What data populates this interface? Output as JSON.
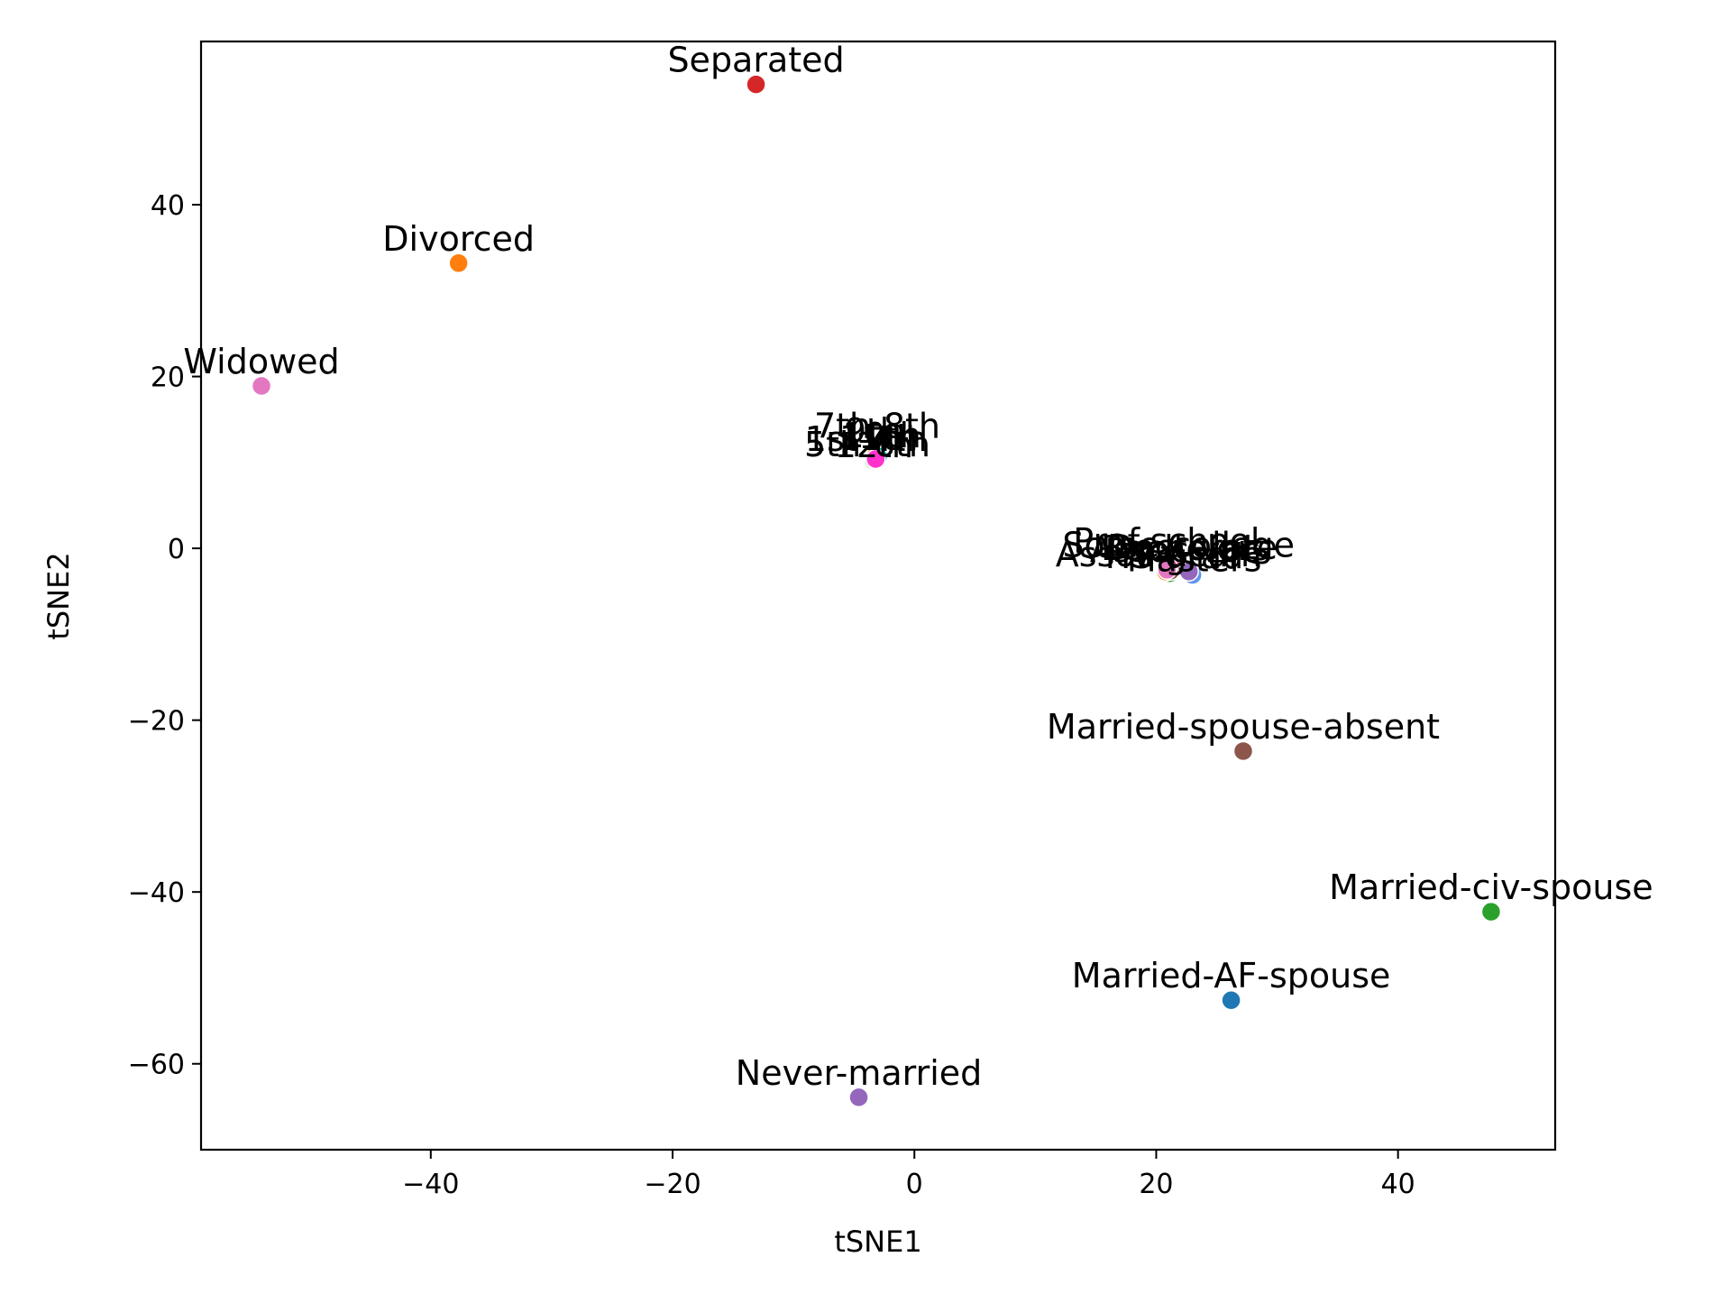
{
  "chart_data": {
    "type": "scatter",
    "title": "",
    "xlabel": "tSNE1",
    "ylabel": "tSNE2",
    "xlim": [
      -59,
      53
    ],
    "ylim": [
      -70,
      59
    ],
    "xticks": [
      {
        "value": -40,
        "label": "−40"
      },
      {
        "value": -20,
        "label": "−20"
      },
      {
        "value": 0,
        "label": "0"
      },
      {
        "value": 20,
        "label": "20"
      },
      {
        "value": 40,
        "label": "40"
      }
    ],
    "yticks": [
      {
        "value": -60,
        "label": "−60"
      },
      {
        "value": -40,
        "label": "−40"
      },
      {
        "value": -20,
        "label": "−20"
      },
      {
        "value": 0,
        "label": "0"
      },
      {
        "value": 20,
        "label": "20"
      },
      {
        "value": 40,
        "label": "40"
      }
    ],
    "grid": false,
    "legend": "none",
    "points": [
      {
        "label": "Separated",
        "x": -13.1,
        "y": 54.0,
        "color": "#d62728"
      },
      {
        "label": "Divorced",
        "x": -37.7,
        "y": 33.2,
        "color": "#ff7f0e"
      },
      {
        "label": "Widowed",
        "x": -54.0,
        "y": 18.9,
        "color": "#e377c2"
      },
      {
        "label": "Married-spouse-absent",
        "x": 27.2,
        "y": -23.6,
        "color": "#8c564b"
      },
      {
        "label": "Married-civ-spouse",
        "x": 47.7,
        "y": -42.3,
        "color": "#2ca02c"
      },
      {
        "label": "Married-AF-spouse",
        "x": 26.2,
        "y": -52.6,
        "color": "#1f77b4"
      },
      {
        "label": "Never-married",
        "x": -4.6,
        "y": -63.9,
        "color": "#9467bd"
      }
    ],
    "cluster_education": [
      {
        "label": "7th-8th",
        "x": -3.0,
        "y": 11.0,
        "color": "#e377c2",
        "dx": -1,
        "dy": -4
      },
      {
        "label": "11th",
        "x": -3.4,
        "y": 10.2,
        "color": "#2ca02c",
        "dx": 6,
        "dy": 2
      },
      {
        "label": "1st-4th",
        "x": -3.1,
        "y": 10.5,
        "color": "#1f77b4",
        "dx": -12,
        "dy": 6
      },
      {
        "label": "9th",
        "x": -3.2,
        "y": 10.8,
        "color": "#ff7f0e",
        "dx": -3,
        "dy": 0
      },
      {
        "label": "5th-6th",
        "x": -3.3,
        "y": 10.3,
        "color": "#d62728",
        "dx": -8,
        "dy": 10
      },
      {
        "label": "10th",
        "x": -3.0,
        "y": 10.7,
        "color": "#17becf",
        "dx": 4,
        "dy": 4
      },
      {
        "label": "12th",
        "x": -3.2,
        "y": 10.4,
        "color": "#ff33cc",
        "dx": -2,
        "dy": 12
      }
    ],
    "cluster_degrees": [
      {
        "label": "Some-college",
        "x": 21.1,
        "y": -2.9,
        "color": "#2ca02c",
        "dx": 10,
        "dy": -4
      },
      {
        "label": "Assoc-acdm",
        "x": 20.8,
        "y": -2.7,
        "color": "#ff7f0e",
        "dx": -8,
        "dy": 8
      },
      {
        "label": "Assoc-voc",
        "x": 21.4,
        "y": -2.4,
        "color": "#d62728",
        "dx": 2,
        "dy": 6
      },
      {
        "label": "Bachelors",
        "x": 21.2,
        "y": -2.6,
        "color": "#8c564b",
        "dx": 16,
        "dy": 2
      },
      {
        "label": "Masters",
        "x": 23.0,
        "y": -3.1,
        "color": "#6495ed",
        "dx": 2,
        "dy": 10
      },
      {
        "label": "Doctorate",
        "x": 22.7,
        "y": -2.7,
        "color": "#9467bd",
        "dx": 4,
        "dy": 0
      },
      {
        "label": "Prof-school",
        "x": 21.0,
        "y": -2.2,
        "color": "#ff33cc",
        "dx": -2,
        "dy": -2
      },
      {
        "label": "HS-grad",
        "x": 20.9,
        "y": -2.5,
        "color": "#e377c2",
        "dx": 8,
        "dy": 12
      }
    ]
  }
}
